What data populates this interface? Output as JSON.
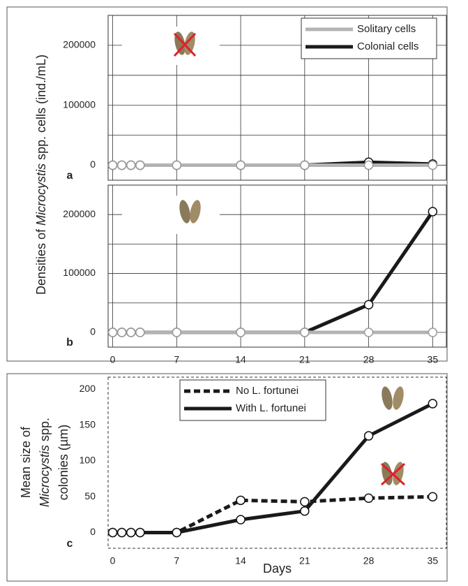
{
  "chart_data": [
    {
      "type": "line",
      "panel": "a",
      "ylabel_parts": [
        "Densities of ",
        "Microcystis",
        " spp. cells (ind./mL)"
      ],
      "x": [
        0,
        1,
        2,
        3,
        7,
        14,
        21,
        28,
        35
      ],
      "xlim": [
        -0.5,
        36.5
      ],
      "xticks": [
        0,
        7,
        14,
        21,
        28,
        35
      ],
      "x_tick_labels": false,
      "ylim": [
        -25000,
        250000
      ],
      "yticks": [
        0,
        100000,
        200000
      ],
      "minor_yticks": [
        50000,
        150000,
        250000
      ],
      "grid": true,
      "legend": "upper right",
      "series": [
        {
          "name": "Solitary cells",
          "color": "#b3b3b3",
          "line_style": "solid",
          "values": [
            0,
            0,
            0,
            0,
            0,
            0,
            0,
            0,
            0
          ]
        },
        {
          "name": "Colonial cells",
          "color": "#1a1a1a",
          "line_style": "solid",
          "values": [
            0,
            0,
            0,
            0,
            0,
            0,
            0,
            5000,
            2000
          ]
        }
      ]
    },
    {
      "type": "line",
      "panel": "b",
      "x": [
        0,
        1,
        2,
        3,
        7,
        14,
        21,
        28,
        35
      ],
      "xlim": [
        -0.5,
        36.5
      ],
      "xticks": [
        0,
        7,
        14,
        21,
        28,
        35
      ],
      "x_tick_labels": true,
      "ylim": [
        -25000,
        250000
      ],
      "yticks": [
        0,
        100000,
        200000
      ],
      "minor_yticks": [
        50000,
        150000,
        250000
      ],
      "grid": true,
      "series": [
        {
          "name": "Solitary cells",
          "color": "#b3b3b3",
          "line_style": "solid",
          "values": [
            0,
            0,
            0,
            0,
            0,
            0,
            0,
            0,
            0
          ]
        },
        {
          "name": "Colonial cells",
          "color": "#1a1a1a",
          "line_style": "solid",
          "values": [
            0,
            0,
            0,
            0,
            0,
            0,
            0,
            47000,
            205000
          ]
        }
      ]
    },
    {
      "type": "line",
      "panel": "c",
      "ylabel_lines": [
        [
          "Mean size of"
        ],
        [
          "Microcystis",
          " spp."
        ],
        [
          "colonies (µm)"
        ]
      ],
      "xlabel": "Days",
      "x": [
        0,
        1,
        2,
        3,
        7,
        14,
        21,
        28,
        35
      ],
      "xlim": [
        -0.5,
        36.5
      ],
      "xticks": [
        0,
        7,
        14,
        21,
        28,
        35
      ],
      "x_tick_labels": true,
      "ylim": [
        -22,
        217
      ],
      "yticks": [
        0,
        50,
        100,
        150,
        200
      ],
      "grid": false,
      "legend": "upper center",
      "series": [
        {
          "name": "No L. fortunei",
          "color": "#1a1a1a",
          "line_style": "dashed",
          "values": [
            0,
            0,
            0,
            0,
            0,
            45,
            43,
            48,
            50
          ]
        },
        {
          "name": "With L. fortunei",
          "color": "#1a1a1a",
          "line_style": "solid",
          "values": [
            0,
            0,
            0,
            0,
            0,
            18,
            30,
            135,
            180
          ]
        }
      ]
    }
  ]
}
